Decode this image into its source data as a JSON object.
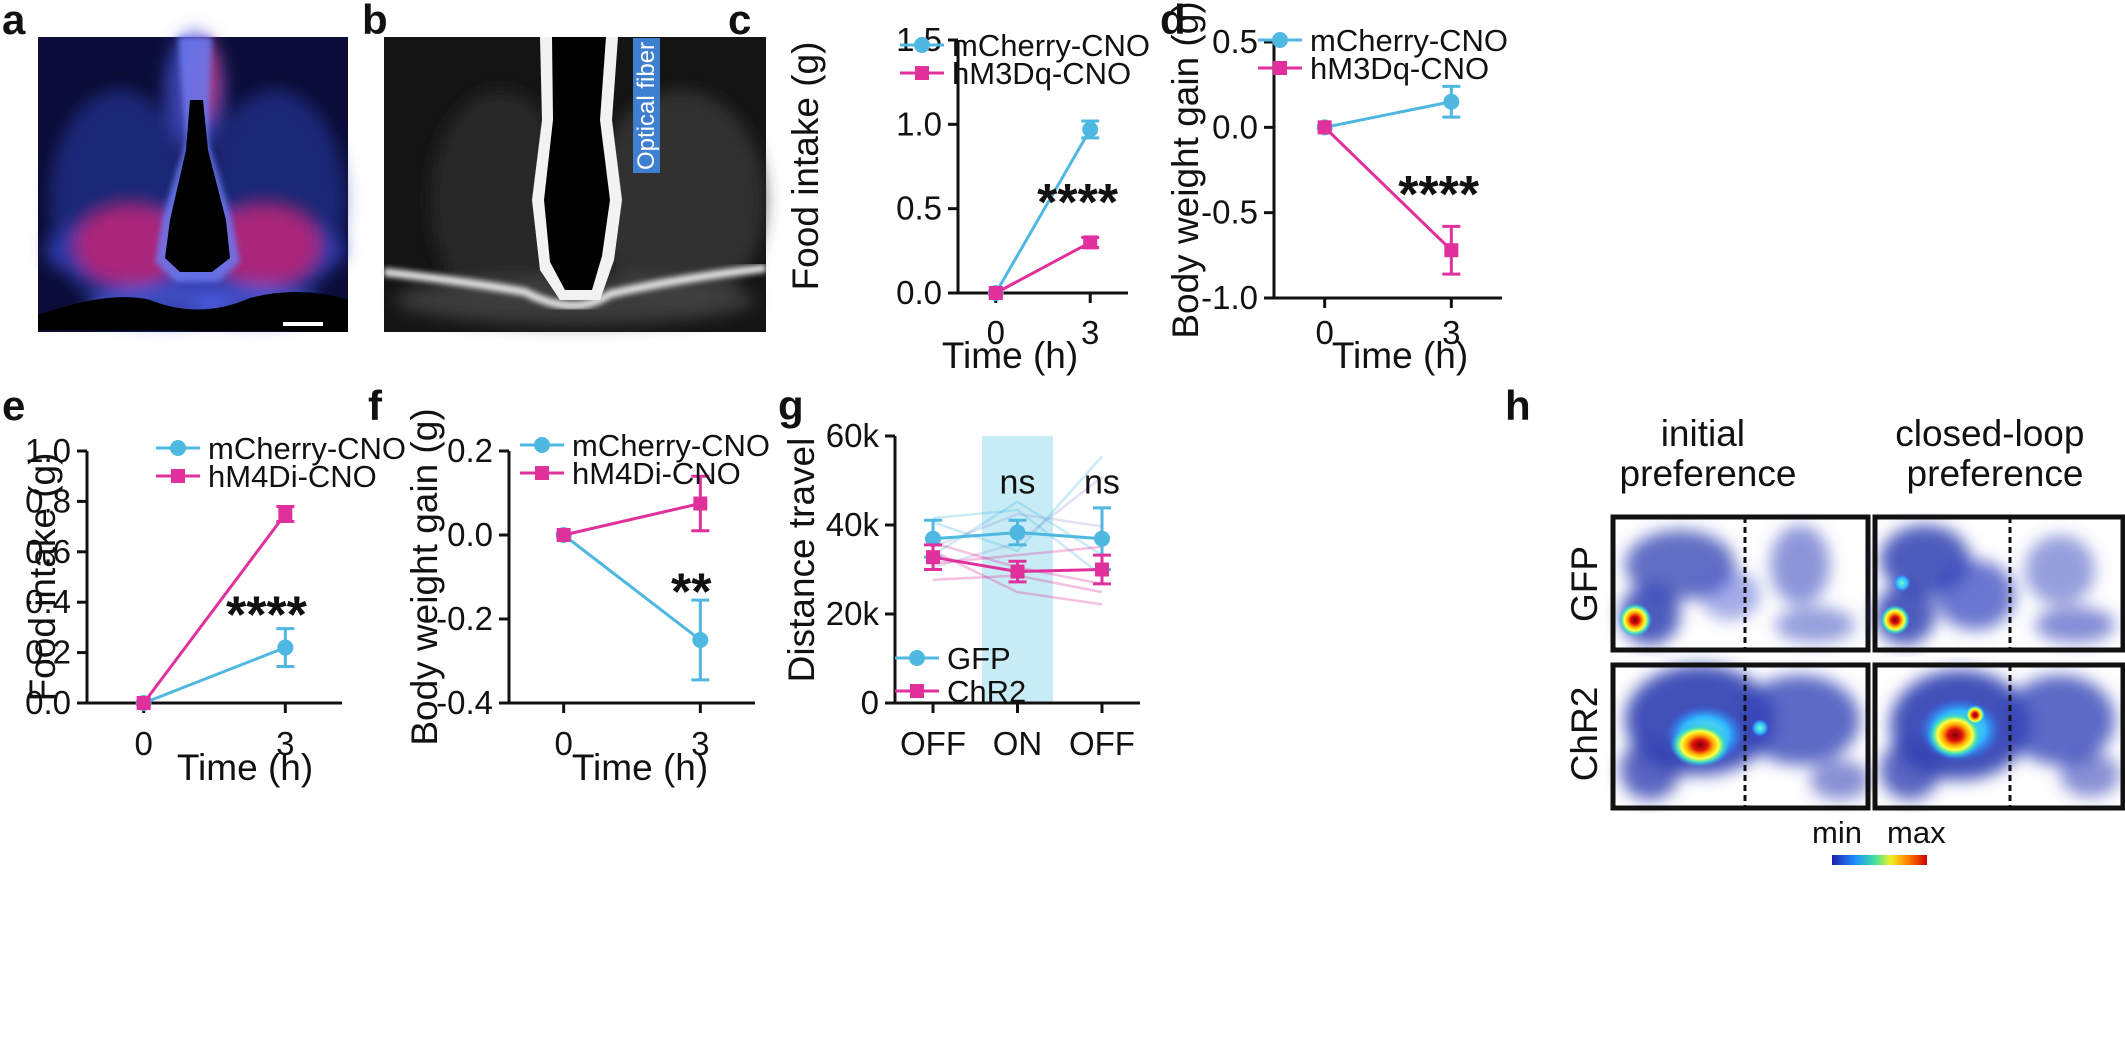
{
  "panels": {
    "a": {
      "label": "a"
    },
    "b": {
      "label": "b",
      "fiber_label": "Optical fiber"
    },
    "h": {
      "label": "h",
      "col_headers": [
        "initial\npreference",
        "closed-loop\npreference"
      ],
      "row_labels": [
        "GFP",
        "ChR2"
      ],
      "colorbar": {
        "min": "min",
        "max": "max"
      }
    }
  },
  "colors": {
    "cyan": "#4EB8E0",
    "magenta": "#E0309C",
    "on_shade": "#C7ECF5",
    "dapi": "#3C55D8",
    "tdtomato": "#FF2850"
  },
  "chart_data": [
    {
      "panel": "c",
      "label": "c",
      "type": "line",
      "x": [
        0,
        3
      ],
      "xticks": [
        0,
        3
      ],
      "xlim": [
        -1.2,
        4.2
      ],
      "ylim": [
        0,
        1.5
      ],
      "yticks": [
        "0.0",
        "0.5",
        "1.0",
        "1.5"
      ],
      "xlabel": "Time (h)",
      "ylabel": "Food intake (g)",
      "series": [
        {
          "name": "mCherry-CNO",
          "values": [
            0,
            0.97
          ],
          "err": [
            0,
            0.05
          ],
          "color": "#4EB8E0",
          "marker": "circle"
        },
        {
          "name": "hM3Dq-CNO",
          "values": [
            0,
            0.3
          ],
          "err": [
            0,
            0.03
          ],
          "color": "#E0309C",
          "marker": "square"
        }
      ],
      "annotations": [
        {
          "text": "****",
          "x": 2.6,
          "y": 0.55
        }
      ],
      "legend": "top-left"
    },
    {
      "panel": "d",
      "label": "d",
      "type": "line",
      "x": [
        0,
        3
      ],
      "xticks": [
        0,
        3
      ],
      "xlim": [
        -1.2,
        4.2
      ],
      "ylim": [
        -1.0,
        0.5
      ],
      "yticks": [
        "-1.0",
        "-0.5",
        "0.0",
        "0.5"
      ],
      "xlabel": "Time (h)",
      "ylabel": "Body weight gain (g)",
      "series": [
        {
          "name": "mCherry-CNO",
          "values": [
            0,
            0.15
          ],
          "err": [
            0,
            0.09
          ],
          "color": "#4EB8E0",
          "marker": "circle"
        },
        {
          "name": "hM3Dq-CNO",
          "values": [
            0,
            -0.72
          ],
          "err": [
            0,
            0.14
          ],
          "color": "#E0309C",
          "marker": "square"
        }
      ],
      "annotations": [
        {
          "text": "****",
          "x": 2.7,
          "y": -0.38
        }
      ],
      "legend": "top-left"
    },
    {
      "panel": "e",
      "label": "e",
      "type": "line",
      "x": [
        0,
        3
      ],
      "xticks": [
        0,
        3
      ],
      "xlim": [
        -1.2,
        4.2
      ],
      "ylim": [
        0,
        1.0
      ],
      "yticks": [
        "0.0",
        "0.2",
        "0.4",
        "0.6",
        "0.8",
        "1.0"
      ],
      "xlabel": "Time (h)",
      "ylabel": "Food intake (g)",
      "series": [
        {
          "name": "mCherry-CNO",
          "values": [
            0,
            0.22
          ],
          "err": [
            0,
            0.075
          ],
          "color": "#4EB8E0",
          "marker": "circle"
        },
        {
          "name": "hM4Di-CNO",
          "values": [
            0,
            0.75
          ],
          "err": [
            0,
            0.03
          ],
          "color": "#E0309C",
          "marker": "square"
        }
      ],
      "annotations": [
        {
          "text": "****",
          "x": 2.6,
          "y": 0.36
        }
      ],
      "legend": "top-left"
    },
    {
      "panel": "f",
      "label": "f",
      "type": "line",
      "x": [
        0,
        3
      ],
      "xticks": [
        0,
        3
      ],
      "xlim": [
        -1.2,
        4.2
      ],
      "ylim": [
        -0.4,
        0.2
      ],
      "yticks": [
        "-0.4",
        "-0.2",
        "0.0",
        "0.2"
      ],
      "xlabel": "Time (h)",
      "ylabel": "Body weight gain (g)",
      "series": [
        {
          "name": "mCherry-CNO",
          "values": [
            0,
            -0.25
          ],
          "err": [
            0,
            0.095
          ],
          "color": "#4EB8E0",
          "marker": "circle"
        },
        {
          "name": "hM4Di-CNO",
          "values": [
            0,
            0.075
          ],
          "err": [
            0,
            0.065
          ],
          "color": "#E0309C",
          "marker": "square"
        }
      ],
      "annotations": [
        {
          "text": "**",
          "x": 2.8,
          "y": -0.13
        }
      ],
      "legend": "top-left"
    },
    {
      "panel": "g",
      "label": "g",
      "type": "line",
      "categories": [
        "OFF",
        "ON",
        "OFF"
      ],
      "x": [
        0,
        1,
        2
      ],
      "xlim": [
        -0.45,
        2.45
      ],
      "ylim": [
        0,
        65000
      ],
      "yticks": [
        "0",
        "20k",
        "40k",
        "60k"
      ],
      "xlabel": "",
      "ylabel": "Distance travel",
      "shade_x": [
        0.58,
        1.42
      ],
      "series": [
        {
          "name": "GFP",
          "values": [
            40000,
            41500,
            40000
          ],
          "err": [
            4500,
            3000,
            7500
          ],
          "color": "#4EB8E0",
          "marker": "circle"
        },
        {
          "name": "ChR2",
          "values": [
            35500,
            32000,
            32500
          ],
          "err": [
            3000,
            2500,
            3500
          ],
          "color": "#E0309C",
          "marker": "square"
        }
      ],
      "individual": [
        {
          "color": "#4EB8E0",
          "values": [
            36000,
            49000,
            36000
          ]
        },
        {
          "color": "#4EB8E0",
          "values": [
            44000,
            37000,
            60000
          ]
        },
        {
          "color": "#4EB8E0",
          "values": [
            45000,
            47000,
            31000
          ]
        },
        {
          "color": "#9B9BD8",
          "values": [
            38000,
            46000,
            43000
          ]
        },
        {
          "color": "#9B9BD8",
          "values": [
            33000,
            39000,
            55000
          ]
        },
        {
          "color": "#E0309C",
          "values": [
            37000,
            27000,
            24000
          ]
        },
        {
          "color": "#E0309C",
          "values": [
            30000,
            31000,
            27000
          ]
        },
        {
          "color": "#E0309C",
          "values": [
            34000,
            36000,
            38000
          ]
        },
        {
          "color": "#E0309C",
          "values": [
            39000,
            33000,
            29000
          ]
        }
      ],
      "annotations": [
        {
          "text": "ns",
          "x": 1,
          "y": 51000
        },
        {
          "text": "ns",
          "x": 2,
          "y": 51000
        }
      ],
      "legend": "bottom-left"
    }
  ]
}
